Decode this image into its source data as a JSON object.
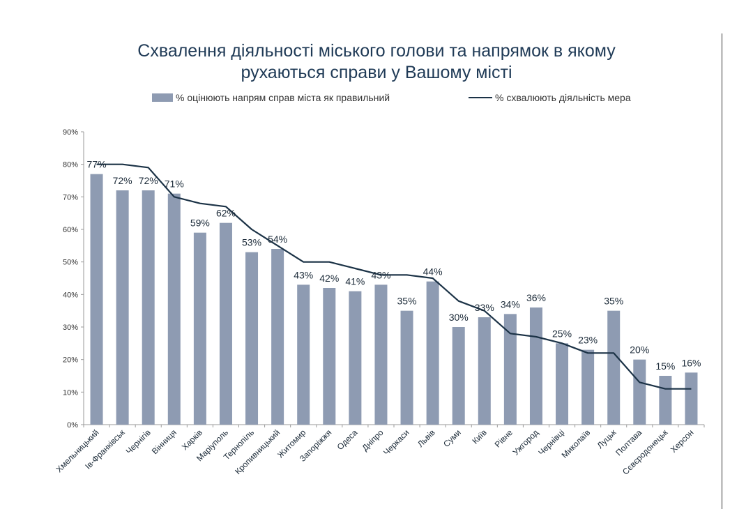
{
  "chart_data": {
    "type": "bar",
    "title_line1": "Схвалення діяльності міського голови та напрямок в якому",
    "title_line2": "рухаються справи у Вашому місті",
    "categories": [
      "Хмельницький",
      "Ів-Франківськ",
      "Чернігів",
      "Вінниця",
      "Харків",
      "Маріуполь",
      "Тернопіль",
      "Кропивницький",
      "Житомир",
      "Запоріжжя",
      "Одеса",
      "Дніпро",
      "Черкаси",
      "Львів",
      "Суми",
      "Київ",
      "Рівне",
      "Ужгород",
      "Чернівці",
      "Миколаїв",
      "Луцьк",
      "Полтава",
      "Сєвєродонецьк",
      "Херсон"
    ],
    "series": [
      {
        "name": "% оцінюють напрям справ міста як правильний",
        "type": "bar",
        "color": "#8e9bb2",
        "values": [
          77,
          72,
          72,
          71,
          59,
          62,
          53,
          54,
          43,
          42,
          41,
          43,
          35,
          44,
          30,
          33,
          34,
          36,
          25,
          23,
          35,
          20,
          15,
          16
        ]
      },
      {
        "name": "% схвалюють діяльність мера",
        "type": "line",
        "color": "#1b3246",
        "values": [
          80,
          80,
          79,
          70,
          68,
          67,
          60,
          55,
          50,
          50,
          48,
          46,
          46,
          45,
          38,
          35,
          28,
          27,
          25,
          22,
          22,
          13,
          11,
          11
        ]
      }
    ],
    "data_labels": [
      "77%",
      "72%",
      "72%",
      "71%",
      "59%",
      "62%",
      "53%",
      "54%",
      "43%",
      "42%",
      "41%",
      "43%",
      "35%",
      "44%",
      "30%",
      "33%",
      "34%",
      "36%",
      "25%",
      "23%",
      "35%",
      "20%",
      "15%",
      "16%"
    ],
    "ylim": [
      0,
      90
    ],
    "yticks": [
      "0%",
      "10%",
      "20%",
      "30%",
      "40%",
      "50%",
      "60%",
      "70%",
      "80%",
      "90%"
    ],
    "grid": false,
    "legend_position": "top"
  }
}
